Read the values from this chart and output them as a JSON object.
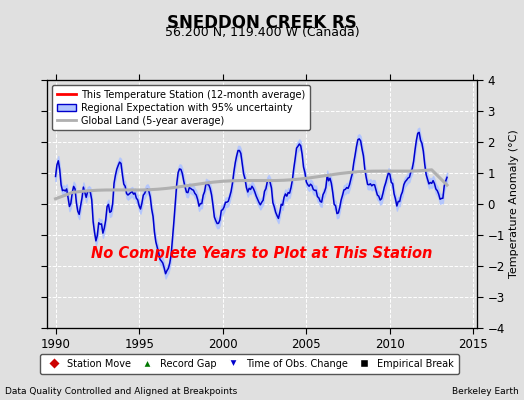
{
  "title": "SNEDDON CREEK RS",
  "subtitle": "56.200 N, 119.400 W (Canada)",
  "ylabel": "Temperature Anomaly (°C)",
  "xlabel_left": "Data Quality Controlled and Aligned at Breakpoints",
  "xlabel_right": "Berkeley Earth",
  "xlim": [
    1989.5,
    2015.2
  ],
  "ylim": [
    -4,
    4
  ],
  "yticks": [
    -4,
    -3,
    -2,
    -1,
    0,
    1,
    2,
    3,
    4
  ],
  "xticks": [
    1990,
    1995,
    2000,
    2005,
    2010,
    2015
  ],
  "no_data_text": "No Complete Years to Plot at This Station",
  "no_data_color": "#ff0000",
  "background_color": "#e0e0e0",
  "plot_background": "#e0e0e0",
  "grid_color": "#ffffff",
  "grid_lw": 0.7,
  "title_fontsize": 12,
  "subtitle_fontsize": 9,
  "tick_fontsize": 8.5,
  "ylabel_fontsize": 8,
  "legend1_labels": [
    "This Temperature Station (12-month average)",
    "Regional Expectation with 95% uncertainty",
    "Global Land (5-year average)"
  ],
  "legend2_labels": [
    "Station Move",
    "Record Gap",
    "Time of Obs. Change",
    "Empirical Break"
  ],
  "legend2_colors": [
    "#cc0000",
    "#007700",
    "#0000cc",
    "#000000"
  ],
  "legend2_markers": [
    "D",
    "^",
    "v",
    "s"
  ]
}
